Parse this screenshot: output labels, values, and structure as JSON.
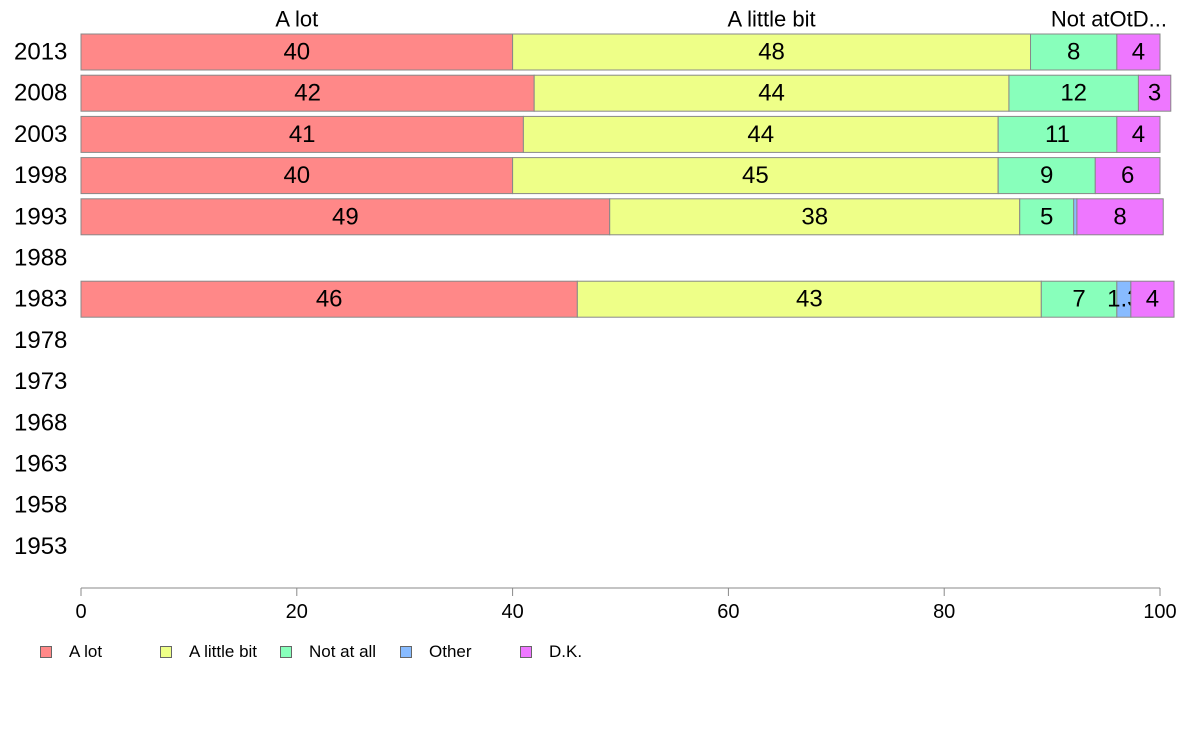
{
  "chart_data": {
    "type": "bar",
    "orientation": "horizontal",
    "stacked": true,
    "categories": [
      "2013",
      "2008",
      "2003",
      "1998",
      "1993",
      "1988",
      "1983",
      "1978",
      "1973",
      "1968",
      "1963",
      "1958",
      "1953"
    ],
    "series": [
      {
        "name": "A lot",
        "color": "#ff8888",
        "values": [
          40,
          42,
          41,
          40,
          49,
          null,
          46,
          null,
          null,
          null,
          null,
          null,
          null
        ]
      },
      {
        "name": "A little bit",
        "color": "#eeff88",
        "values": [
          48,
          44,
          44,
          45,
          38,
          null,
          43,
          null,
          null,
          null,
          null,
          null,
          null
        ]
      },
      {
        "name": "Not at all",
        "color": "#88ffbb",
        "values": [
          8,
          12,
          11,
          9,
          5,
          null,
          7,
          null,
          null,
          null,
          null,
          null,
          null
        ]
      },
      {
        "name": "Other",
        "color": "#88bbff",
        "values": [
          0,
          0,
          0,
          0,
          0.3,
          null,
          1.3,
          null,
          null,
          null,
          null,
          null,
          null
        ]
      },
      {
        "name": "D.K.",
        "color": "#ee77ff",
        "values": [
          4,
          3,
          4,
          6,
          8,
          null,
          4,
          null,
          null,
          null,
          null,
          null,
          null
        ]
      }
    ],
    "column_headers": [
      "A lot",
      "A little bit",
      "Not atOtD..."
    ],
    "xlim": [
      0,
      100
    ],
    "xticks": [
      0,
      20,
      40,
      60,
      80,
      100
    ],
    "grid": false,
    "legend_position": "bottom-left"
  }
}
